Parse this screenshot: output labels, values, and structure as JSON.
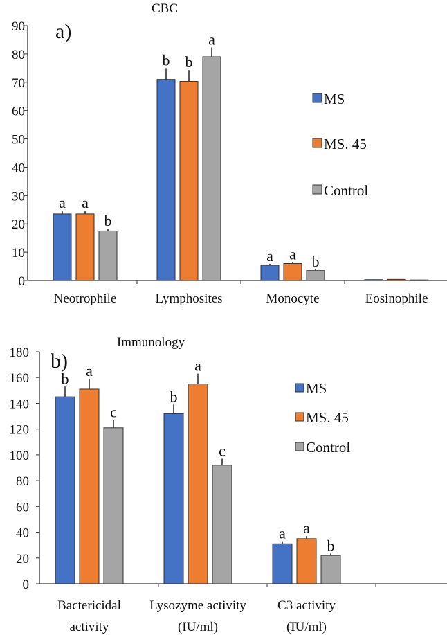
{
  "chart_data": [
    {
      "type": "bar",
      "panel_label": "a)",
      "title": "CBC",
      "xlabel": "",
      "ylabel": "",
      "ylim": [
        0,
        90
      ],
      "yticks": [
        0,
        10,
        20,
        30,
        40,
        50,
        60,
        70,
        80,
        90
      ],
      "categories": [
        "Neotrophile",
        "Lymphosites",
        "Monocyte",
        "Eosinophile"
      ],
      "series": [
        {
          "name": "MS",
          "color": "#4472C4",
          "values": [
            23.5,
            71,
            5.4,
            0.3
          ],
          "errors": [
            1.2,
            4,
            0.5,
            0.1
          ],
          "letters": [
            "a",
            "b",
            "a",
            ""
          ]
        },
        {
          "name": "MS. 45",
          "color": "#ED7D31",
          "values": [
            23.5,
            70.3,
            6,
            0.4
          ],
          "errors": [
            1.2,
            4,
            0.5,
            0.1
          ],
          "letters": [
            "a",
            "b",
            "a",
            ""
          ]
        },
        {
          "name": "Control",
          "color": "#A5A5A5",
          "values": [
            17.5,
            79,
            3.5,
            0.2
          ],
          "errors": [
            0.8,
            3.3,
            0.4,
            0.1
          ],
          "letters": [
            "b",
            "a",
            "b",
            ""
          ]
        }
      ],
      "grid": false,
      "legend_position": "right"
    },
    {
      "type": "bar",
      "panel_label": "b)",
      "title": "Immunology",
      "xlabel": "",
      "ylabel": "",
      "ylim": [
        0,
        180
      ],
      "yticks": [
        0,
        20,
        40,
        60,
        80,
        100,
        120,
        140,
        160,
        180
      ],
      "categories": [
        [
          "Bactericidal",
          "activity"
        ],
        [
          "Lysozyme activity",
          "(IU/ml)"
        ],
        [
          "C3 activity",
          "(IU/ml)"
        ]
      ],
      "series": [
        {
          "name": "MS",
          "color": "#4472C4",
          "values": [
            145,
            132,
            31
          ],
          "errors": [
            8,
            7,
            2
          ],
          "letters": [
            "b",
            "b",
            "a"
          ]
        },
        {
          "name": "MS. 45",
          "color": "#ED7D31",
          "values": [
            151,
            155,
            35
          ],
          "errors": [
            8,
            8,
            2
          ],
          "letters": [
            "a",
            "a",
            "a"
          ]
        },
        {
          "name": "Control",
          "color": "#A5A5A5",
          "values": [
            121,
            92,
            22
          ],
          "errors": [
            6,
            5,
            1.5
          ],
          "letters": [
            "c",
            "c",
            "b"
          ]
        }
      ],
      "grid": false,
      "legend_position": "right"
    }
  ]
}
